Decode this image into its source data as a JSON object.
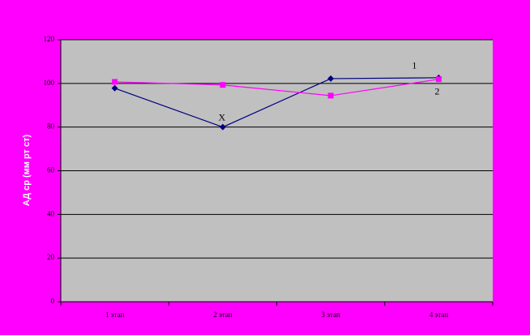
{
  "chart_data": {
    "type": "line",
    "y_label": "АД ср (мм рт ст)",
    "categories": [
      "1 этап",
      "2 этап",
      "3 этап",
      "4 этап"
    ],
    "series": [
      {
        "color": "#000080",
        "marker": "diamond",
        "values": [
          97.8,
          80,
          102.2,
          102.6
        ]
      },
      {
        "color": "#ff00ff",
        "marker": "square",
        "values": [
          100.7,
          99.3,
          94.4,
          101.9
        ]
      }
    ],
    "annotations": [
      {
        "text": "1"
      },
      {
        "text": "2"
      },
      {
        "text": "X"
      }
    ],
    "ylim": [
      0,
      120
    ],
    "yticks": [
      0,
      20,
      40,
      60,
      80,
      100,
      120
    ],
    "grid": true
  }
}
